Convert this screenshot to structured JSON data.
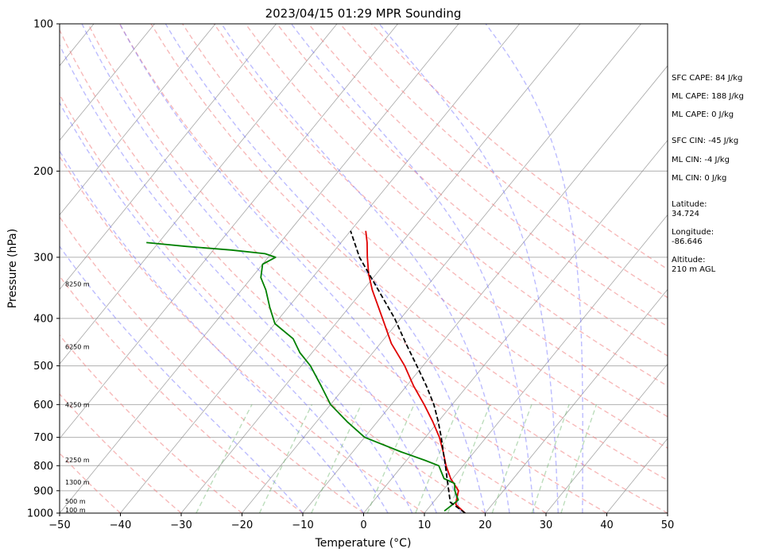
{
  "chart_data": {
    "type": "line",
    "title": "2023/04/15 01:29 MPR Sounding",
    "xlabel": "Temperature (°C)",
    "ylabel": "Pressure (hPa)",
    "xlim": [
      -50,
      50
    ],
    "ylim": [
      1000,
      100
    ],
    "y_scale": "log",
    "skew": "skew-T",
    "x_ticks": [
      "−50",
      "−40",
      "−30",
      "−20",
      "−10",
      "0",
      "10",
      "20",
      "30",
      "40",
      "50"
    ],
    "x_tick_values": [
      -50,
      -40,
      -30,
      -20,
      -10,
      0,
      10,
      20,
      30,
      40,
      50
    ],
    "y_ticks": [
      "100",
      "200",
      "300",
      "400",
      "500",
      "600",
      "700",
      "800",
      "900",
      "1000"
    ],
    "y_tick_values": [
      100,
      200,
      300,
      400,
      500,
      600,
      700,
      800,
      900,
      1000
    ],
    "grid": true,
    "series": [
      {
        "kind": "temperature",
        "color": "#e00000",
        "points": [
          [
            1000,
            16.7
          ],
          [
            960,
            14.0
          ],
          [
            940,
            13.5
          ],
          [
            900,
            12.6
          ],
          [
            850,
            9.7
          ],
          [
            800,
            7.2
          ],
          [
            750,
            4.9
          ],
          [
            700,
            2.3
          ],
          [
            650,
            -0.9
          ],
          [
            600,
            -4.6
          ],
          [
            550,
            -8.8
          ],
          [
            500,
            -13.0
          ],
          [
            450,
            -18.2
          ],
          [
            400,
            -23.0
          ],
          [
            350,
            -28.5
          ],
          [
            325,
            -31.2
          ],
          [
            300,
            -33.7
          ],
          [
            280,
            -35.7
          ],
          [
            265,
            -37.5
          ]
        ]
      },
      {
        "kind": "dewpoint",
        "color": "#008000",
        "points": [
          [
            990,
            13.0
          ],
          [
            960,
            13.5
          ],
          [
            940,
            13.8
          ],
          [
            900,
            12.0
          ],
          [
            870,
            11.0
          ],
          [
            850,
            8.6
          ],
          [
            800,
            6.0
          ],
          [
            780,
            3.0
          ],
          [
            750,
            -2.0
          ],
          [
            700,
            -10.0
          ],
          [
            650,
            -15.0
          ],
          [
            600,
            -20.0
          ],
          [
            550,
            -24.0
          ],
          [
            500,
            -28.5
          ],
          [
            470,
            -32.0
          ],
          [
            440,
            -35.0
          ],
          [
            410,
            -40.0
          ],
          [
            380,
            -43.0
          ],
          [
            350,
            -46.0
          ],
          [
            330,
            -48.5
          ],
          [
            310,
            -50.0
          ],
          [
            300,
            -48.8
          ],
          [
            295,
            -51.0
          ],
          [
            290,
            -57.0
          ],
          [
            285,
            -65.0
          ],
          [
            280,
            -72.0
          ]
        ]
      },
      {
        "kind": "parcel",
        "color": "#000000",
        "dashed": true,
        "points": [
          [
            1000,
            16.7
          ],
          [
            950,
            12.8
          ],
          [
            900,
            11.0
          ],
          [
            850,
            9.1
          ],
          [
            800,
            7.1
          ],
          [
            750,
            4.9
          ],
          [
            700,
            2.6
          ],
          [
            650,
            0.0
          ],
          [
            600,
            -3.0
          ],
          [
            550,
            -6.7
          ],
          [
            500,
            -11.0
          ],
          [
            450,
            -15.8
          ],
          [
            400,
            -21.0
          ],
          [
            350,
            -27.5
          ],
          [
            300,
            -35.0
          ],
          [
            265,
            -40.0
          ]
        ]
      }
    ],
    "height_labels": [
      {
        "text": "100 m",
        "pressure": 985
      },
      {
        "text": "500 m",
        "pressure": 945
      },
      {
        "text": "1300 m",
        "pressure": 865
      },
      {
        "text": "2250 m",
        "pressure": 778
      },
      {
        "text": "4250 m",
        "pressure": 600
      },
      {
        "text": "6250 m",
        "pressure": 457
      },
      {
        "text": "8250 m",
        "pressure": 340
      }
    ],
    "reference_lines": {
      "dry_adiabats_color": "#f08080",
      "moist_adiabats_color": "#6a6aff",
      "mixing_ratio_color": "#6ab46a",
      "isotherm_color": "#808080"
    }
  },
  "stats": {
    "sfc_cape": "SFC CAPE: 84 J/kg",
    "ml_cape_1": "ML CAPE: 188 J/kg",
    "ml_cape_2": "ML CAPE: 0 J/kg",
    "sfc_cin": "SFC CIN: -45 J/kg",
    "ml_cin_1": "ML CIN: -4 J/kg",
    "ml_cin_2": "ML CIN: 0 J/kg",
    "latitude_label": "Latitude:",
    "latitude_value": "34.724",
    "longitude_label": "Longitude:",
    "longitude_value": "-86.646",
    "altitude_label": "Altitude:",
    "altitude_value": "210 m AGL"
  }
}
